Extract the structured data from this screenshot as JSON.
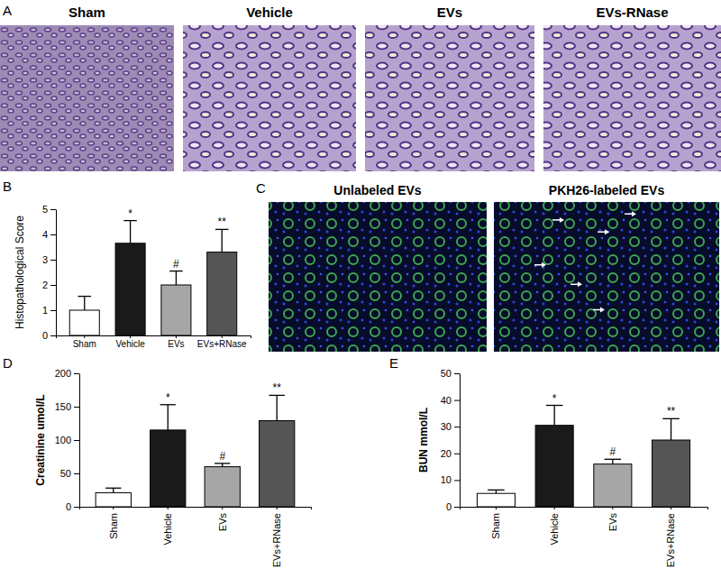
{
  "figure": {
    "panels": [
      {
        "label": "A",
        "images": [
          "Sham",
          "Vehicle",
          "EVs",
          "EVs-RNase"
        ]
      },
      {
        "label": "C",
        "images": [
          "Unlabeled EVs",
          "PKH26-labeled EVs"
        ]
      }
    ]
  },
  "chart_data": [
    {
      "type": "bar",
      "annotations": [
        "B"
      ],
      "y_label": "Histopathological Score",
      "categories": [
        "Sham",
        "Vehicle",
        "EVs",
        "EVs+RNase"
      ],
      "values": [
        1.0,
        3.65,
        2.0,
        3.3
      ],
      "errors": [
        0.55,
        0.9,
        0.55,
        0.9
      ],
      "significance": [
        null,
        "*",
        "#",
        "**"
      ],
      "colors": [
        "#ffffff",
        "#1a1a1a",
        "#a6a6a6",
        "#555555"
      ],
      "ylim": [
        0,
        5
      ],
      "yticks": [
        0,
        1,
        2,
        3,
        4,
        5
      ]
    },
    {
      "type": "bar",
      "annotations": [
        "D"
      ],
      "y_label": "Creatinine umol/L",
      "categories": [
        "Sham",
        "Vehicle",
        "EVs",
        "EVs+RNase"
      ],
      "values": [
        21,
        115,
        60,
        129
      ],
      "errors": [
        7,
        38,
        5,
        38
      ],
      "significance": [
        null,
        "*",
        "#",
        "**"
      ],
      "colors": [
        "#ffffff",
        "#1a1a1a",
        "#a6a6a6",
        "#555555"
      ],
      "ylim": [
        0,
        200
      ],
      "yticks": [
        0,
        50,
        100,
        150,
        200
      ]
    },
    {
      "type": "bar",
      "annotations": [
        "E"
      ],
      "y_label": "BUN mmol/L",
      "categories": [
        "Sham",
        "Vehicle",
        "EVs",
        "EVs+RNase"
      ],
      "values": [
        5,
        30.5,
        16,
        25
      ],
      "errors": [
        1.3,
        7.5,
        1.8,
        8
      ],
      "significance": [
        null,
        "*",
        "#",
        "**"
      ],
      "colors": [
        "#ffffff",
        "#1a1a1a",
        "#a6a6a6",
        "#555555"
      ],
      "ylim": [
        0,
        50
      ],
      "yticks": [
        0,
        10,
        20,
        30,
        40,
        50
      ]
    }
  ]
}
